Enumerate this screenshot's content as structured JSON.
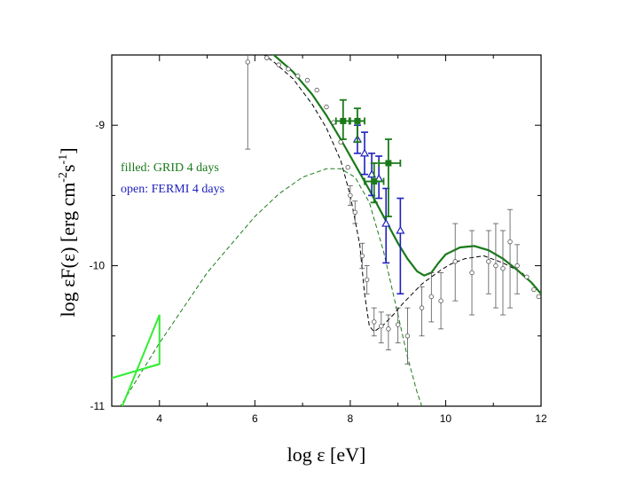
{
  "chart_data": {
    "type": "scatter",
    "xlabel": "log ε [eV]",
    "ylabel_main": "log εF(ε) [erg cm",
    "ylabel_sup1": "-2",
    "ylabel_mid": "s",
    "ylabel_sup2": "-1",
    "ylabel_end": "]",
    "xlim": [
      3,
      12
    ],
    "ylim": [
      -11,
      -8.5
    ],
    "xticks": [
      4,
      6,
      8,
      10,
      12
    ],
    "xtick_labels": [
      "4",
      "6",
      "8",
      "10",
      "12"
    ],
    "yticks": [
      -11,
      -10,
      -9
    ],
    "ytick_labels": [
      "-11",
      "-10",
      "-9"
    ],
    "legend": [
      {
        "label": "filled: GRID 4 days",
        "color": "#1a7a1a"
      },
      {
        "label": "open: FERMI 4 days",
        "color": "#2020c0"
      }
    ],
    "colors": {
      "total_model": "#1a7a1a",
      "synchrotron_dashed": "#000000",
      "ic_dashed": "#1a7a1a",
      "bowtie": "#33ee33",
      "archival": "#555555",
      "grid": "#1a7a1a",
      "fermi": "#2020c0"
    },
    "series": [
      {
        "name": "total model",
        "style": "solid",
        "x": [
          5.9,
          6.4,
          6.8,
          7.2,
          7.5,
          7.8,
          8.1,
          8.4,
          8.7,
          9.0,
          9.2,
          9.4,
          9.55,
          9.7,
          9.85,
          10.0,
          10.3,
          10.6,
          10.9,
          11.2,
          11.5,
          11.8,
          12.0
        ],
        "y": [
          -8.35,
          -8.5,
          -8.62,
          -8.78,
          -8.93,
          -9.1,
          -9.28,
          -9.46,
          -9.65,
          -9.84,
          -9.95,
          -10.04,
          -10.07,
          -10.05,
          -9.98,
          -9.92,
          -9.87,
          -9.86,
          -9.89,
          -9.95,
          -10.03,
          -10.12,
          -10.2
        ]
      },
      {
        "name": "synchrotron (dashed)",
        "style": "dashed",
        "x": [
          5.8,
          6.4,
          6.8,
          7.2,
          7.5,
          7.8,
          8.0,
          8.2,
          8.3,
          8.4,
          8.5,
          8.7,
          8.9,
          9.1,
          9.3,
          9.5,
          9.7,
          9.9,
          10.1,
          10.4,
          10.8,
          11.2,
          11.6,
          12.0
        ],
        "y": [
          -8.4,
          -8.55,
          -8.67,
          -8.85,
          -9.02,
          -9.25,
          -9.5,
          -9.85,
          -10.2,
          -10.43,
          -10.47,
          -10.42,
          -10.35,
          -10.27,
          -10.2,
          -10.13,
          -10.08,
          -10.03,
          -9.99,
          -9.95,
          -9.93,
          -9.98,
          -10.05,
          -10.2
        ]
      },
      {
        "name": "inverse Compton (dashed)",
        "style": "dashed",
        "x": [
          3.0,
          4.0,
          5.0,
          5.5,
          6.0,
          6.5,
          7.0,
          7.5,
          7.8,
          8.1,
          8.4,
          8.7,
          9.0,
          9.2,
          9.4,
          9.6
        ],
        "y": [
          -11.1,
          -10.55,
          -10.05,
          -9.85,
          -9.65,
          -9.49,
          -9.37,
          -9.31,
          -9.31,
          -9.37,
          -9.55,
          -9.9,
          -10.35,
          -10.65,
          -10.9,
          -11.1
        ]
      },
      {
        "name": "bowtie",
        "style": "solid",
        "polylines": [
          {
            "x": [
              3.0,
              4.0,
              4.0,
              3.1
            ],
            "y": [
              -10.8,
              -10.7,
              -10.35,
              -11.1
            ]
          },
          {
            "x": [
              3.0,
              4.0
            ],
            "y": [
              -10.8,
              -10.7
            ]
          }
        ]
      },
      {
        "name": "archival (open circles)",
        "marker": "open-circle",
        "points": [
          {
            "x": 5.85,
            "y": -8.55,
            "lo": -9.17,
            "hi": -8.3
          },
          {
            "x": 6.25,
            "y": -8.52
          },
          {
            "x": 6.5,
            "y": -8.57
          },
          {
            "x": 6.7,
            "y": -8.6
          },
          {
            "x": 6.9,
            "y": -8.65
          },
          {
            "x": 7.1,
            "y": -8.68
          },
          {
            "x": 7.3,
            "y": -8.75
          },
          {
            "x": 7.5,
            "y": -8.87
          },
          {
            "x": 7.65,
            "y": -8.98
          },
          {
            "x": 7.8,
            "y": -9.12
          },
          {
            "x": 7.95,
            "y": -9.3
          },
          {
            "x": 8.0,
            "y": -9.5,
            "lo": -9.57,
            "hi": -9.43
          },
          {
            "x": 8.1,
            "y": -9.62,
            "lo": -9.7,
            "hi": -9.54
          },
          {
            "x": 8.25,
            "y": -9.93,
            "lo": -10.02,
            "hi": -9.84
          },
          {
            "x": 8.35,
            "y": -10.1,
            "lo": -10.2,
            "hi": -10.0
          },
          {
            "x": 8.5,
            "y": -10.4,
            "lo": -10.5,
            "hi": -10.3
          },
          {
            "x": 8.65,
            "y": -10.43,
            "lo": -10.55,
            "hi": -10.33
          },
          {
            "x": 8.8,
            "y": -10.45,
            "lo": -10.6,
            "hi": -10.35
          },
          {
            "x": 9.0,
            "y": -10.42,
            "lo": -10.55,
            "hi": -10.3
          },
          {
            "x": 9.2,
            "y": -10.5,
            "lo": -10.7,
            "hi": -10.3
          },
          {
            "x": 9.5,
            "y": -10.3,
            "lo": -10.5,
            "hi": -10.15
          },
          {
            "x": 9.7,
            "y": -10.22,
            "lo": -10.4,
            "hi": -10.05
          },
          {
            "x": 9.9,
            "y": -10.25,
            "lo": -10.45,
            "hi": -10.05
          },
          {
            "x": 10.2,
            "y": -9.97,
            "lo": -10.25,
            "hi": -9.7
          },
          {
            "x": 10.55,
            "y": -10.05,
            "lo": -10.35,
            "hi": -9.75
          },
          {
            "x": 10.9,
            "y": -9.97,
            "lo": -10.2,
            "hi": -9.75
          },
          {
            "x": 11.05,
            "y": -10.0,
            "lo": -10.3,
            "hi": -9.7
          },
          {
            "x": 11.2,
            "y": -10.02,
            "lo": -10.35,
            "hi": -9.75
          },
          {
            "x": 11.35,
            "y": -9.83,
            "lo": -10.3,
            "hi": -9.6
          },
          {
            "x": 11.5,
            "y": -10.0,
            "lo": -10.2,
            "hi": -9.85
          },
          {
            "x": 11.7,
            "y": -10.08
          },
          {
            "x": 11.85,
            "y": -10.17
          },
          {
            "x": 11.95,
            "y": -10.22
          }
        ]
      },
      {
        "name": "GRID 4 days",
        "marker": "filled-square",
        "points": [
          {
            "x": 7.85,
            "y": -8.97,
            "xlo": 7.7,
            "xhi": 7.98,
            "lo": -9.1,
            "hi": -8.82
          },
          {
            "x": 8.15,
            "y": -8.97,
            "xlo": 8.0,
            "xhi": 8.3,
            "lo": -9.12,
            "hi": -8.88
          },
          {
            "x": 8.5,
            "y": -9.4,
            "xlo": 8.3,
            "xhi": 8.7,
            "lo": -9.55,
            "hi": -9.27
          },
          {
            "x": 8.8,
            "y": -9.27,
            "xlo": 8.6,
            "xhi": 9.05,
            "lo": -9.65,
            "hi": -9.1
          }
        ]
      },
      {
        "name": "FERMI 4 days",
        "marker": "open-triangle",
        "points": [
          {
            "x": 8.15,
            "y": -9.1,
            "lo": -9.2,
            "hi": -9.0
          },
          {
            "x": 8.3,
            "y": -9.2,
            "lo": -9.35,
            "hi": -9.05
          },
          {
            "x": 8.45,
            "y": -9.35,
            "lo": -9.5,
            "hi": -9.2
          },
          {
            "x": 8.6,
            "y": -9.38,
            "lo": -9.52,
            "hi": -9.22
          },
          {
            "x": 8.75,
            "y": -9.7,
            "lo": -9.98,
            "hi": -9.45
          },
          {
            "x": 9.05,
            "y": -9.75,
            "lo": -10.2,
            "hi": -9.52
          }
        ]
      }
    ]
  }
}
